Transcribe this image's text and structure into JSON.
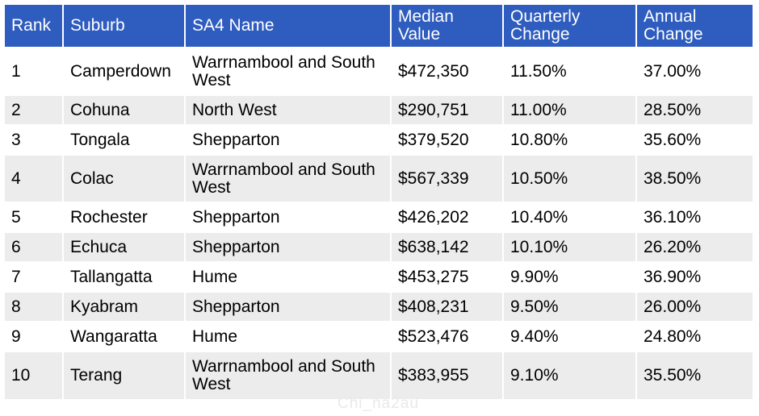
{
  "table": {
    "headers": [
      "Rank",
      "Suburb",
      "SA4 Name",
      "Median Value",
      "Quarterly Change",
      "Annual Change"
    ],
    "rows": [
      [
        "1",
        "Camperdown",
        "Warrnambool and South West",
        "$472,350",
        "11.50%",
        "37.00%"
      ],
      [
        "2",
        "Cohuna",
        "North West",
        "$290,751",
        "11.00%",
        "28.50%"
      ],
      [
        "3",
        "Tongala",
        "Shepparton",
        "$379,520",
        "10.80%",
        "35.60%"
      ],
      [
        "4",
        "Colac",
        "Warrnambool and South West",
        "$567,339",
        "10.50%",
        "38.50%"
      ],
      [
        "5",
        "Rochester",
        "Shepparton",
        "$426,202",
        "10.40%",
        "36.10%"
      ],
      [
        "6",
        "Echuca",
        "Shepparton",
        "$638,142",
        "10.10%",
        "26.20%"
      ],
      [
        "7",
        "Tallangatta",
        "Hume",
        "$453,275",
        "9.90%",
        "36.90%"
      ],
      [
        "8",
        "Kyabram",
        "Shepparton",
        "$408,231",
        "9.50%",
        "26.00%"
      ],
      [
        "9",
        "Wangaratta",
        "Hume",
        "$523,476",
        "9.40%",
        "24.80%"
      ],
      [
        "10",
        "Terang",
        "Warrnambool and South West",
        "$383,955",
        "9.10%",
        "35.50%"
      ]
    ]
  },
  "watermark": "Chi_na2au",
  "colors": {
    "header_bg": "#2f5cbf",
    "header_text": "#ffffff",
    "stripe_bg": "#ececec"
  }
}
